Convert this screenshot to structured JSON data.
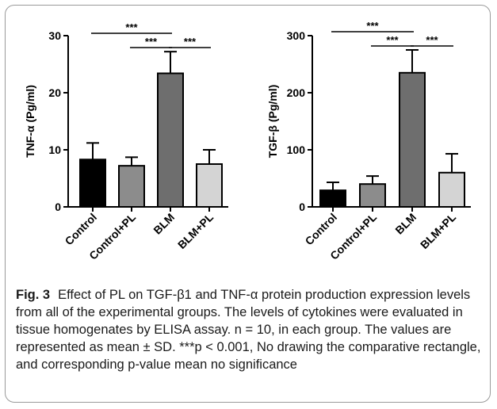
{
  "caption": {
    "label": "Fig. 3",
    "text": "Effect of PL on TGF-β1 and TNF-α protein production expression levels from all of the experimental groups. The levels of cytokines were evaluated in tissue homogenates by ELISA assay. n = 10, in each group. The values are represented as mean ± SD. ***p < 0.001, No drawing the comparative rectangle, and corresponding p-value mean no significance"
  },
  "chart_data": [
    {
      "type": "bar",
      "ylabel": "TNF-α (Pg/ml)",
      "categories": [
        "Control",
        "Control+PL",
        "BLM",
        "BLM+PL"
      ],
      "values": [
        8.3,
        7.2,
        23.4,
        7.5
      ],
      "errors": [
        2.9,
        1.5,
        3.8,
        2.5
      ],
      "colors": [
        "#000000",
        "#8c8c8c",
        "#6e6e6e",
        "#d4d4d4"
      ],
      "ylim": [
        0,
        30
      ],
      "yticks": [
        0,
        10,
        20,
        30
      ],
      "significance": [
        {
          "from": 0,
          "to": 2,
          "label": "***"
        },
        {
          "from": 1,
          "to": 2,
          "label": "***"
        },
        {
          "from": 2,
          "to": 3,
          "label": "***"
        }
      ]
    },
    {
      "type": "bar",
      "ylabel": "TGF-β (Pg/ml)",
      "categories": [
        "Control",
        "Control+PL",
        "BLM",
        "BLM+PL"
      ],
      "values": [
        29,
        40,
        235,
        60
      ],
      "errors": [
        14,
        14,
        40,
        33
      ],
      "colors": [
        "#000000",
        "#8c8c8c",
        "#6e6e6e",
        "#d4d4d4"
      ],
      "ylim": [
        0,
        300
      ],
      "yticks": [
        0,
        100,
        200,
        300
      ],
      "significance": [
        {
          "from": 0,
          "to": 2,
          "label": "***"
        },
        {
          "from": 1,
          "to": 2,
          "label": "***"
        },
        {
          "from": 2,
          "to": 3,
          "label": "***"
        }
      ]
    }
  ]
}
